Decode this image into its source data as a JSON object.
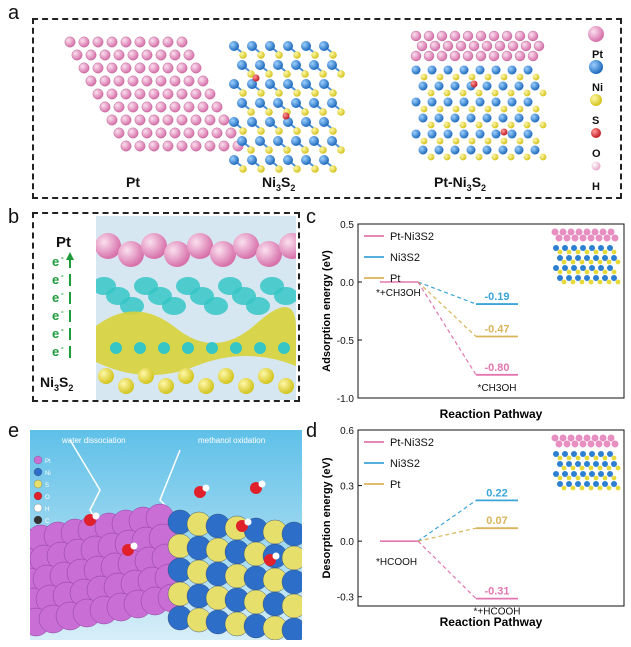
{
  "panels": {
    "a": {
      "letter": "a",
      "labels": {
        "pt": "Pt",
        "ni3s2_main": "Ni",
        "ni3s2_sub3": "3",
        "ni3s2_s": "S",
        "ni3s2_sub2": "2",
        "ptni_main": "Pt-Ni",
        "ptni_sub3": "3",
        "ptni_s": "S",
        "ptni_sub2": "2"
      },
      "legend": [
        {
          "label": "Pt",
          "color": "#e68fc0"
        },
        {
          "label": "Ni",
          "color": "#2d7fd1"
        },
        {
          "label": "S",
          "color": "#e6d93a"
        },
        {
          "label": "O",
          "color": "#d8262c"
        },
        {
          "label": "H",
          "color": "#f0b8d6"
        }
      ]
    },
    "b": {
      "letter": "b",
      "top_label": "Pt",
      "electron": "e",
      "electron_sup": "-",
      "bottom_main": "Ni",
      "bottom_sub3": "3",
      "bottom_s": "S",
      "bottom_sub2": "2"
    },
    "e": {
      "letter": "e",
      "left_caption": "water dissociation",
      "right_caption": "methanol oxidation",
      "legend_items": [
        "Pt",
        "Ni",
        "S",
        "O",
        "H",
        "C"
      ]
    }
  },
  "chart_data": [
    {
      "panel_letter": "c",
      "type": "line",
      "xlabel": "Reaction Pathway",
      "ylabel": "Adsorption energy (eV)",
      "ylim": [
        -1.0,
        0.5
      ],
      "yticks": [
        "0.5",
        "0.0",
        "-0.5",
        "-1.0"
      ],
      "initial_state": {
        "label": "*+CH3OH",
        "value": 0.0
      },
      "final_state_label": "*CH3OH",
      "legend": [
        {
          "name": "Pt-Ni3S2",
          "color": "#e376b0"
        },
        {
          "name": "Ni3S2",
          "color": "#3aa5d6"
        },
        {
          "name": "Pt",
          "color": "#d9b45a"
        }
      ],
      "series": [
        {
          "name": "Ni3S2",
          "value": -0.19,
          "label": "-0.19",
          "color": "#3aa5d6"
        },
        {
          "name": "Pt",
          "value": -0.47,
          "label": "-0.47",
          "color": "#d9b45a"
        },
        {
          "name": "Pt-Ni3S2",
          "value": -0.8,
          "label": "-0.80",
          "color": "#e376b0"
        }
      ]
    },
    {
      "panel_letter": "d",
      "type": "line",
      "xlabel": "Reaction Pathway",
      "ylabel": "Desorption energy (eV)",
      "ylim": [
        -0.35,
        0.6
      ],
      "yticks": [
        "0.6",
        "0.3",
        "0.0",
        "-0.3"
      ],
      "initial_state": {
        "label": "*HCOOH",
        "value": 0.0
      },
      "final_state_label": "*+HCOOH",
      "legend": [
        {
          "name": "Pt-Ni3S2",
          "color": "#e376b0"
        },
        {
          "name": "Ni3S2",
          "color": "#3aa5d6"
        },
        {
          "name": "Pt",
          "color": "#d9b45a"
        }
      ],
      "series": [
        {
          "name": "Ni3S2",
          "value": 0.22,
          "label": "0.22",
          "color": "#3aa5d6"
        },
        {
          "name": "Pt",
          "value": 0.07,
          "label": "0.07",
          "color": "#d9b45a"
        },
        {
          "name": "Pt-Ni3S2",
          "value": -0.31,
          "label": "-0.31",
          "color": "#e376b0"
        }
      ]
    }
  ]
}
